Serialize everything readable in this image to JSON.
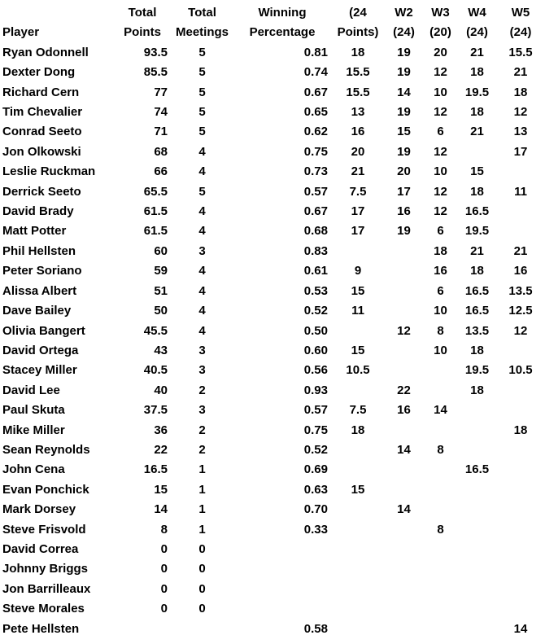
{
  "colors": {
    "background": "#ffffff",
    "text": "#000000"
  },
  "table": {
    "header_row1": [
      "",
      "Total",
      "Total",
      "Winning",
      "(24",
      "W2",
      "W3",
      "W4",
      "W5"
    ],
    "header_row2": [
      "Player",
      "Points",
      "Meetings",
      "Percentage",
      "Points)",
      "(24)",
      "(20)",
      "(24)",
      "(24)"
    ],
    "column_keys": [
      "player",
      "total_points",
      "total_meetings",
      "winning_percentage",
      "w1_24_points",
      "w2",
      "w3",
      "w4",
      "w5"
    ],
    "rows": [
      {
        "player": "Ryan Odonnell",
        "total_points": "93.5",
        "total_meetings": "5",
        "winning_percentage": "0.81",
        "w1_24_points": "18",
        "w2": "19",
        "w3": "20",
        "w4": "21",
        "w5": "15.5"
      },
      {
        "player": "Dexter Dong",
        "total_points": "85.5",
        "total_meetings": "5",
        "winning_percentage": "0.74",
        "w1_24_points": "15.5",
        "w2": "19",
        "w3": "12",
        "w4": "18",
        "w5": "21"
      },
      {
        "player": "Richard Cern",
        "total_points": "77",
        "total_meetings": "5",
        "winning_percentage": "0.67",
        "w1_24_points": "15.5",
        "w2": "14",
        "w3": "10",
        "w4": "19.5",
        "w5": "18"
      },
      {
        "player": "Tim Chevalier",
        "total_points": "74",
        "total_meetings": "5",
        "winning_percentage": "0.65",
        "w1_24_points": "13",
        "w2": "19",
        "w3": "12",
        "w4": "18",
        "w5": "12"
      },
      {
        "player": "Conrad Seeto",
        "total_points": "71",
        "total_meetings": "5",
        "winning_percentage": "0.62",
        "w1_24_points": "16",
        "w2": "15",
        "w3": "6",
        "w4": "21",
        "w5": "13"
      },
      {
        "player": "Jon Olkowski",
        "total_points": "68",
        "total_meetings": "4",
        "winning_percentage": "0.75",
        "w1_24_points": "20",
        "w2": "19",
        "w3": "12",
        "w4": "",
        "w5": "17"
      },
      {
        "player": "Leslie Ruckman",
        "total_points": "66",
        "total_meetings": "4",
        "winning_percentage": "0.73",
        "w1_24_points": "21",
        "w2": "20",
        "w3": "10",
        "w4": "15",
        "w5": ""
      },
      {
        "player": "Derrick Seeto",
        "total_points": "65.5",
        "total_meetings": "5",
        "winning_percentage": "0.57",
        "w1_24_points": "7.5",
        "w2": "17",
        "w3": "12",
        "w4": "18",
        "w5": "11"
      },
      {
        "player": "David Brady",
        "total_points": "61.5",
        "total_meetings": "4",
        "winning_percentage": "0.67",
        "w1_24_points": "17",
        "w2": "16",
        "w3": "12",
        "w4": "16.5",
        "w5": ""
      },
      {
        "player": "Matt Potter",
        "total_points": "61.5",
        "total_meetings": "4",
        "winning_percentage": "0.68",
        "w1_24_points": "17",
        "w2": "19",
        "w3": "6",
        "w4": "19.5",
        "w5": ""
      },
      {
        "player": "Phil Hellsten",
        "total_points": "60",
        "total_meetings": "3",
        "winning_percentage": "0.83",
        "w1_24_points": "",
        "w2": "",
        "w3": "18",
        "w4": "21",
        "w5": "21"
      },
      {
        "player": "Peter Soriano",
        "total_points": "59",
        "total_meetings": "4",
        "winning_percentage": "0.61",
        "w1_24_points": "9",
        "w2": "",
        "w3": "16",
        "w4": "18",
        "w5": "16"
      },
      {
        "player": "Alissa Albert",
        "total_points": "51",
        "total_meetings": "4",
        "winning_percentage": "0.53",
        "w1_24_points": "15",
        "w2": "",
        "w3": "6",
        "w4": "16.5",
        "w5": "13.5"
      },
      {
        "player": "Dave Bailey",
        "total_points": "50",
        "total_meetings": "4",
        "winning_percentage": "0.52",
        "w1_24_points": "11",
        "w2": "",
        "w3": "10",
        "w4": "16.5",
        "w5": "12.5"
      },
      {
        "player": "Olivia Bangert",
        "total_points": "45.5",
        "total_meetings": "4",
        "winning_percentage": "0.50",
        "w1_24_points": "",
        "w2": "12",
        "w3": "8",
        "w4": "13.5",
        "w5": "12"
      },
      {
        "player": "David Ortega",
        "total_points": "43",
        "total_meetings": "3",
        "winning_percentage": "0.60",
        "w1_24_points": "15",
        "w2": "",
        "w3": "10",
        "w4": "18",
        "w5": ""
      },
      {
        "player": "Stacey Miller",
        "total_points": "40.5",
        "total_meetings": "3",
        "winning_percentage": "0.56",
        "w1_24_points": "10.5",
        "w2": "",
        "w3": "",
        "w4": "19.5",
        "w5": "10.5"
      },
      {
        "player": "David Lee",
        "total_points": "40",
        "total_meetings": "2",
        "winning_percentage": "0.93",
        "w1_24_points": "",
        "w2": "22",
        "w3": "",
        "w4": "18",
        "w5": ""
      },
      {
        "player": "Paul Skuta",
        "total_points": "37.5",
        "total_meetings": "3",
        "winning_percentage": "0.57",
        "w1_24_points": "7.5",
        "w2": "16",
        "w3": "14",
        "w4": "",
        "w5": ""
      },
      {
        "player": "Mike Miller",
        "total_points": "36",
        "total_meetings": "2",
        "winning_percentage": "0.75",
        "w1_24_points": "18",
        "w2": "",
        "w3": "",
        "w4": "",
        "w5": "18"
      },
      {
        "player": "Sean Reynolds",
        "total_points": "22",
        "total_meetings": "2",
        "winning_percentage": "0.52",
        "w1_24_points": "",
        "w2": "14",
        "w3": "8",
        "w4": "",
        "w5": ""
      },
      {
        "player": "John Cena",
        "total_points": "16.5",
        "total_meetings": "1",
        "winning_percentage": "0.69",
        "w1_24_points": "",
        "w2": "",
        "w3": "",
        "w4": "16.5",
        "w5": ""
      },
      {
        "player": "Evan Ponchick",
        "total_points": "15",
        "total_meetings": "1",
        "winning_percentage": "0.63",
        "w1_24_points": "15",
        "w2": "",
        "w3": "",
        "w4": "",
        "w5": ""
      },
      {
        "player": "Mark Dorsey",
        "total_points": "14",
        "total_meetings": "1",
        "winning_percentage": "0.70",
        "w1_24_points": "",
        "w2": "14",
        "w3": "",
        "w4": "",
        "w5": ""
      },
      {
        "player": "Steve Frisvold",
        "total_points": "8",
        "total_meetings": "1",
        "winning_percentage": "0.33",
        "w1_24_points": "",
        "w2": "",
        "w3": "8",
        "w4": "",
        "w5": ""
      },
      {
        "player": "David Correa",
        "total_points": "0",
        "total_meetings": "0",
        "winning_percentage": "",
        "w1_24_points": "",
        "w2": "",
        "w3": "",
        "w4": "",
        "w5": ""
      },
      {
        "player": "Johnny Briggs",
        "total_points": "0",
        "total_meetings": "0",
        "winning_percentage": "",
        "w1_24_points": "",
        "w2": "",
        "w3": "",
        "w4": "",
        "w5": ""
      },
      {
        "player": "Jon Barrilleaux",
        "total_points": "0",
        "total_meetings": "0",
        "winning_percentage": "",
        "w1_24_points": "",
        "w2": "",
        "w3": "",
        "w4": "",
        "w5": ""
      },
      {
        "player": "Steve Morales",
        "total_points": "0",
        "total_meetings": "0",
        "winning_percentage": "",
        "w1_24_points": "",
        "w2": "",
        "w3": "",
        "w4": "",
        "w5": ""
      },
      {
        "player": "Pete Hellsten",
        "total_points": "",
        "total_meetings": "",
        "winning_percentage": "0.58",
        "w1_24_points": "",
        "w2": "",
        "w3": "",
        "w4": "",
        "w5": "14"
      }
    ]
  }
}
